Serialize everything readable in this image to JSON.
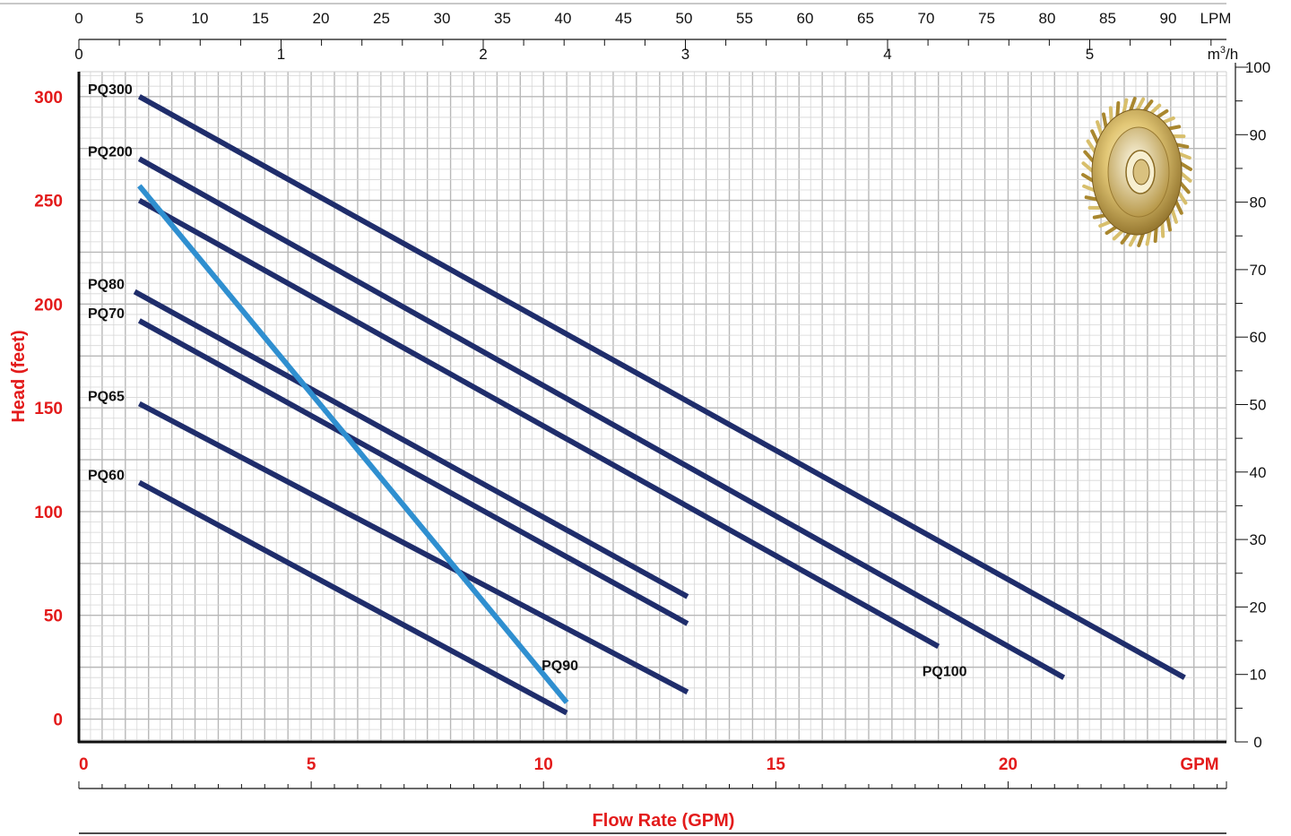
{
  "colors": {
    "curve": "#1f2d6b",
    "highlight": "#2f8fd0",
    "axis_red": "#e31b1b",
    "grid_minor": "#d6d6d6",
    "grid_major": "#b8b8b8"
  },
  "chart_data": {
    "type": "line",
    "title": "",
    "xlabel": "Flow Rate (GPM)",
    "ylabel": "Head (feet)",
    "x_unit": "GPM",
    "xlim": [
      0,
      24.7
    ],
    "ylim": [
      -11,
      312
    ],
    "x_ticks": [
      "0",
      "5",
      "10",
      "15",
      "20"
    ],
    "y_ticks": [
      "0",
      "50",
      "100",
      "150",
      "200",
      "250",
      "300"
    ],
    "secondary_axes": {
      "lpm": {
        "unit": "LPM",
        "ticks": [
          "0",
          "5",
          "10",
          "15",
          "20",
          "25",
          "30",
          "35",
          "40",
          "45",
          "50",
          "55",
          "60",
          "65",
          "70",
          "75",
          "80",
          "85",
          "90"
        ]
      },
      "m3h": {
        "unit": "m³/h",
        "unit_base": "m",
        "unit_sup": "3",
        "unit_rest": "/h",
        "ticks": [
          "0",
          "1",
          "2",
          "3",
          "4",
          "5"
        ]
      },
      "meters": {
        "ticks": [
          "0",
          "10",
          "20",
          "30",
          "40",
          "50",
          "60",
          "70",
          "80",
          "90",
          "100"
        ]
      }
    },
    "grid": true,
    "series": [
      {
        "name": "PQ300",
        "color": "#1f2d6b",
        "label_pos": "start",
        "points": [
          [
            1.3,
            300
          ],
          [
            23.8,
            20
          ]
        ]
      },
      {
        "name": "PQ200",
        "color": "#1f2d6b",
        "label_pos": "start",
        "points": [
          [
            1.3,
            270
          ],
          [
            21.2,
            20
          ]
        ]
      },
      {
        "name": "PQ100",
        "color": "#1f2d6b",
        "label_pos": "end",
        "points": [
          [
            1.3,
            250
          ],
          [
            18.5,
            35
          ]
        ]
      },
      {
        "name": "PQ80",
        "color": "#1f2d6b",
        "label_pos": "start",
        "points": [
          [
            1.2,
            206
          ],
          [
            13.1,
            59
          ]
        ]
      },
      {
        "name": "PQ70",
        "color": "#1f2d6b",
        "label_pos": "start",
        "points": [
          [
            1.3,
            192
          ],
          [
            13.1,
            46
          ]
        ]
      },
      {
        "name": "PQ65",
        "color": "#1f2d6b",
        "label_pos": "start",
        "points": [
          [
            1.3,
            152
          ],
          [
            13.1,
            13
          ]
        ]
      },
      {
        "name": "PQ60",
        "color": "#1f2d6b",
        "label_pos": "start",
        "points": [
          [
            1.3,
            114
          ],
          [
            10.5,
            3
          ]
        ]
      },
      {
        "name": "PQ90",
        "color": "#2f8fd0",
        "label_pos": "end",
        "points": [
          [
            1.3,
            257
          ],
          [
            10.5,
            8
          ]
        ]
      }
    ]
  }
}
